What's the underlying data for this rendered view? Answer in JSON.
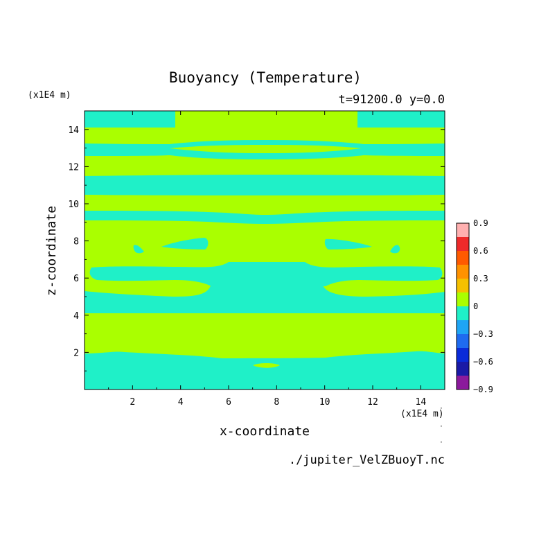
{
  "chart_data": {
    "type": "contour",
    "title": "Buoyancy (Temperature)",
    "subtitle": "t=91200.0 y=0.0",
    "xlabel": "x-coordinate",
    "ylabel": "z-coordinate",
    "x_unit": "(x1E4 m)",
    "y_unit": "(x1E4 m)",
    "xlim": [
      0,
      15
    ],
    "ylim": [
      0,
      15
    ],
    "x_ticks": [
      "2",
      "4",
      "6",
      "8",
      "10",
      "12",
      "14"
    ],
    "y_ticks": [
      "2",
      "4",
      "6",
      "8",
      "10",
      "12",
      "14"
    ],
    "x_tick_values": [
      2,
      4,
      6,
      8,
      10,
      12,
      14
    ],
    "y_tick_values": [
      2,
      4,
      6,
      8,
      10,
      12,
      14
    ],
    "source_file": "./jupiter_VelZBuoyT.nc",
    "colorbar": {
      "levels": [
        -0.9,
        -0.75,
        -0.6,
        -0.45,
        -0.3,
        -0.15,
        0,
        0.15,
        0.3,
        0.45,
        0.6,
        0.75,
        0.9
      ],
      "tick_labels": [
        "0.9",
        "0.6",
        "0.3",
        "0",
        "−0.3",
        "−0.6",
        "−0.9"
      ],
      "tick_values": [
        0.9,
        0.6,
        0.3,
        0,
        -0.3,
        -0.6,
        -0.9
      ],
      "colors": [
        "#8b1a9c",
        "#1a1aa6",
        "#0a2bd9",
        "#1e6bf0",
        "#1ea5f5",
        "#1ff0c8",
        "#aaff00",
        "#f5c000",
        "#ff9200",
        "#ff5a00",
        "#ee2a2a",
        "#ffb0b0"
      ]
    },
    "fields": {
      "negative_region_color": "#1ff0c8",
      "positive_region_color": "#aaff00",
      "bands_negative": [
        {
          "z": [
            0,
            1.9
          ]
        },
        {
          "z": [
            4.1,
            5.3
          ]
        },
        {
          "z": [
            6.1,
            6.6
          ]
        },
        {
          "z": [
            9.1,
            9.6
          ]
        },
        {
          "z": [
            10.3,
            11.3
          ]
        },
        {
          "z": [
            12.3,
            13.1
          ]
        },
        {
          "z": [
            14.3,
            15
          ]
        }
      ]
    }
  }
}
